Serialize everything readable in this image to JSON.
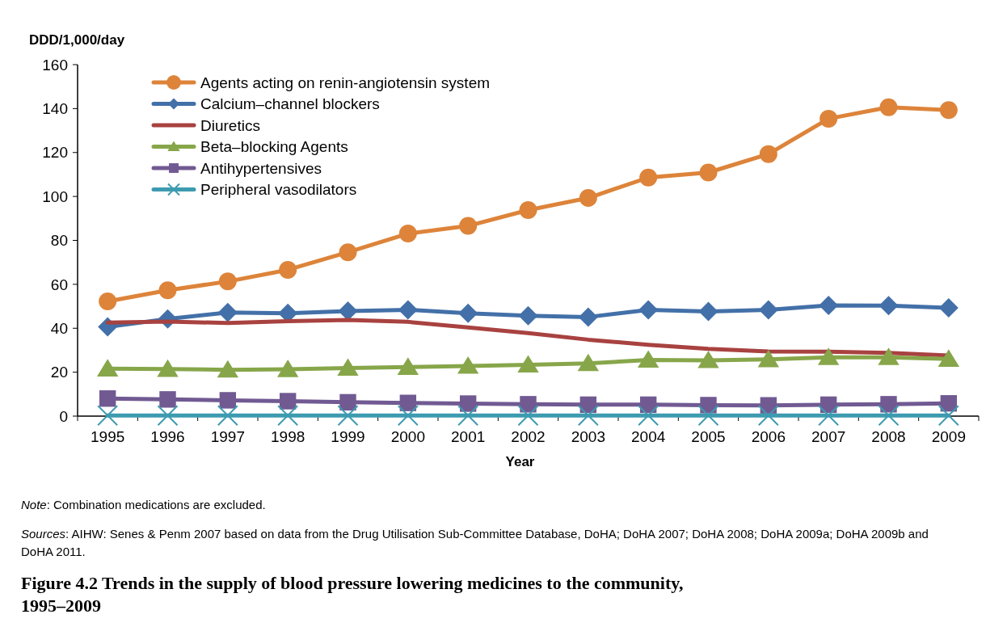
{
  "chart_data": {
    "type": "line",
    "title": "Figure 4.2 Trends in the supply of blood pressure lowering medicines to the community, 1995–2009",
    "xlabel": "Year",
    "ylabel": "DDD/1,000/day",
    "categories": [
      "1995",
      "1996",
      "1997",
      "1998",
      "1999",
      "2000",
      "2001",
      "2002",
      "2003",
      "2004",
      "2005",
      "2006",
      "2007",
      "2008",
      "2009"
    ],
    "ylim": [
      0,
      160
    ],
    "yticks": [
      0,
      20,
      40,
      60,
      80,
      100,
      120,
      140,
      160
    ],
    "grid": false,
    "legend": "top left",
    "line_style": "solid",
    "annotations": [
      "Note: Combination medications are excluded.",
      "Sources: AIHW: Senes & Penm 2007 based on data from the Drug Utilisation Sub-Committee Database, DoHA; DoHA 2007; DoHA 2008; DoHA 2009a; DoHA 2009b and DoHA 2011."
    ],
    "series": [
      {
        "name": "Agents acting on renin-angiotensin system",
        "color": "#dd843a",
        "marker": "circle",
        "values": [
          52.2,
          57.3,
          61.3,
          66.6,
          74.6,
          83.1,
          86.6,
          93.8,
          99.3,
          108.6,
          110.9,
          119.3,
          135.4,
          140.6,
          139.3
        ]
      },
      {
        "name": "Calcium–channel blockers",
        "color": "#4370a8",
        "marker": "diamond",
        "values": [
          40.6,
          44.2,
          47.2,
          46.8,
          47.8,
          48.4,
          46.8,
          45.7,
          45.1,
          48.4,
          47.6,
          48.4,
          50.4,
          50.3,
          49.3
        ]
      },
      {
        "name": "Diuretics",
        "color": "#a84240",
        "marker": "none",
        "values": [
          42.6,
          43.0,
          42.4,
          43.2,
          43.8,
          42.9,
          40.4,
          37.8,
          34.8,
          32.5,
          30.6,
          29.4,
          29.3,
          28.8,
          27.6
        ]
      },
      {
        "name": "Beta–blocking Agents",
        "color": "#87a64a",
        "marker": "triangle",
        "values": [
          21.6,
          21.4,
          21.1,
          21.3,
          21.9,
          22.3,
          22.8,
          23.4,
          24.0,
          25.6,
          25.4,
          25.8,
          26.8,
          26.8,
          26.0
        ]
      },
      {
        "name": "Antihypertensives",
        "color": "#715a92",
        "marker": "square",
        "values": [
          8.0,
          7.6,
          7.2,
          6.8,
          6.3,
          6.0,
          5.7,
          5.4,
          5.2,
          5.2,
          5.0,
          4.9,
          5.2,
          5.4,
          5.8
        ]
      },
      {
        "name": "Peripheral vasodilators",
        "color": "#3d9bb0",
        "marker": "cross",
        "values": [
          0.3,
          0.3,
          0.3,
          0.3,
          0.3,
          0.3,
          0.3,
          0.3,
          0.3,
          0.3,
          0.3,
          0.3,
          0.3,
          0.3,
          0.3
        ]
      }
    ]
  }
}
